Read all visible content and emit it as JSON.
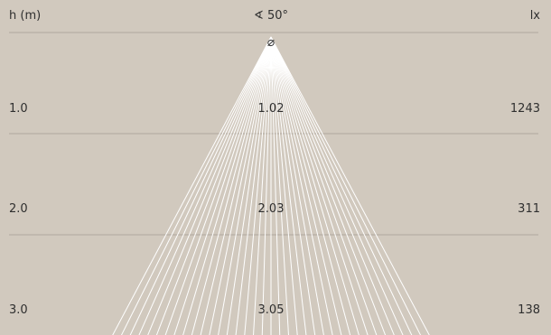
{
  "header": {
    "height_label": "h (m)",
    "angle_symbol": "∢",
    "beam_angle": "50°",
    "lux_label": "lx",
    "diameter_symbol": "⌀"
  },
  "rows": [
    {
      "height": "1.0",
      "diameter": "1.02",
      "lux": "1243"
    },
    {
      "height": "2.0",
      "diameter": "2.03",
      "lux": "311"
    },
    {
      "height": "3.0",
      "diameter": "3.05",
      "lux": "138"
    }
  ],
  "colors": {
    "background": "#d1c9be",
    "beam": "#ffffff",
    "gridline": "#b0a89d",
    "text": "#2f2f2f"
  }
}
